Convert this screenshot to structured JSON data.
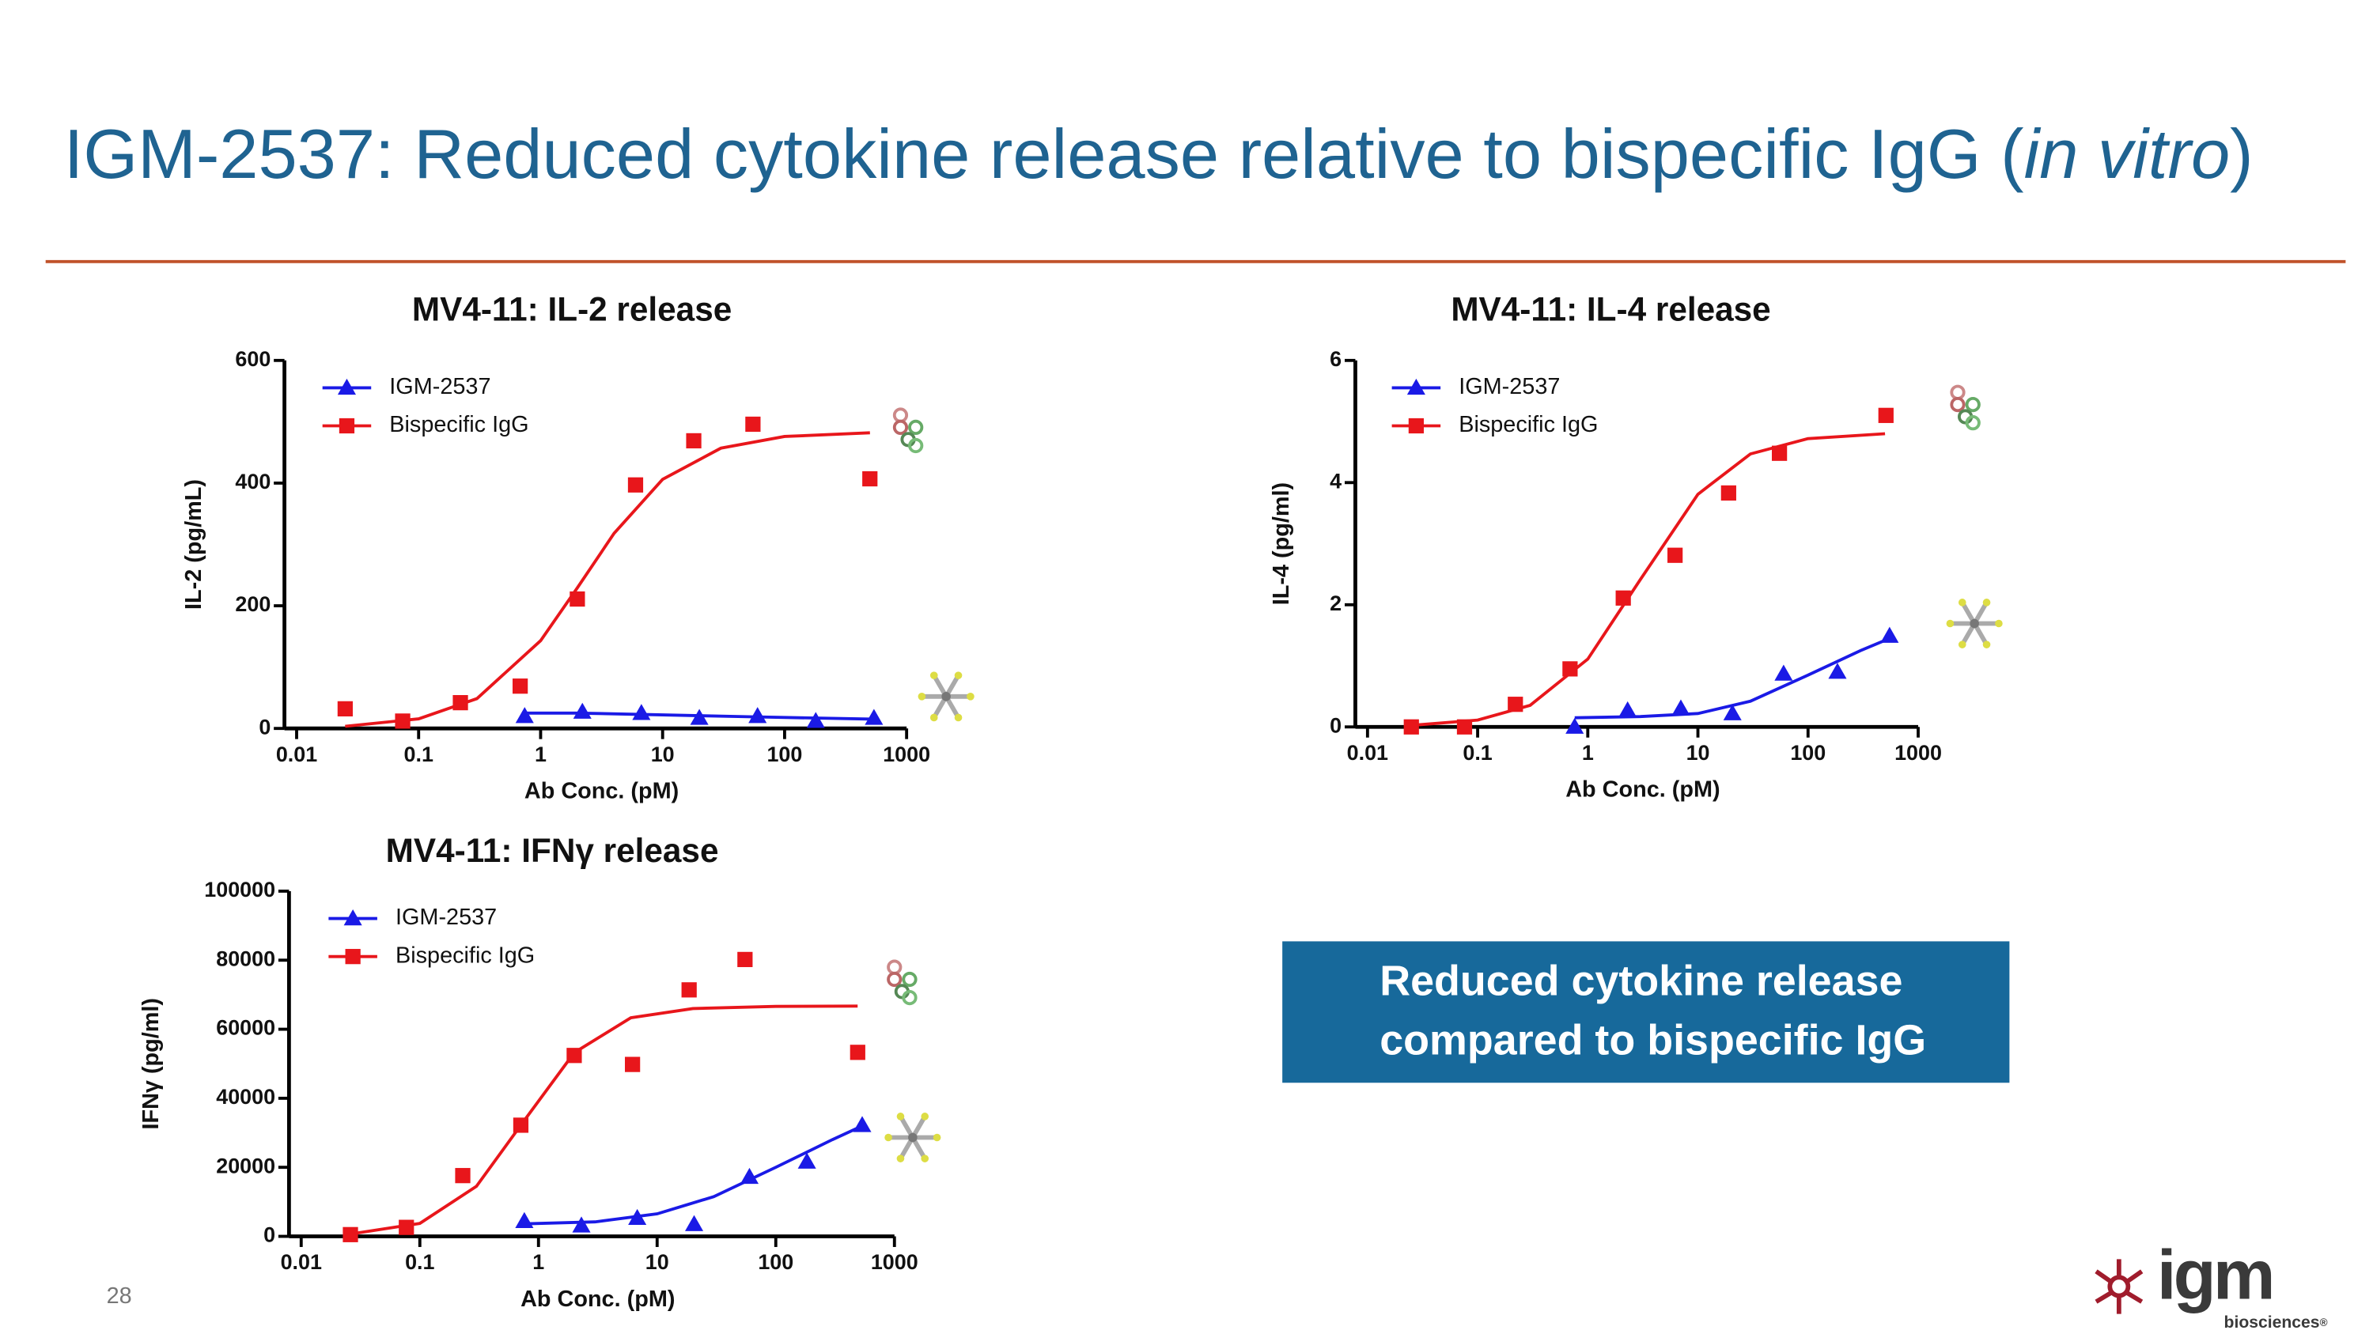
{
  "header": {
    "title": "IGM-2537: Reduced cytokine release relative to bispecific IgG (",
    "title_italic": "in vitro",
    "title_end": ")"
  },
  "chart_data": [
    {
      "type": "scatter",
      "title": "MV4-11: IL-2 release",
      "x_label": "Ab Conc. (pM)",
      "y_label": "IL-2 (pg/mL)",
      "log_x": true,
      "xlim": [
        0.01,
        1000
      ],
      "xticks": [
        0.01,
        0.1,
        1,
        10,
        100,
        1000
      ],
      "ylim": [
        0,
        600
      ],
      "yticks": [
        0,
        200,
        400,
        600
      ],
      "legend": "upper left",
      "series": [
        {
          "name": "IGM-2537",
          "color": "#1a1ae6",
          "marker": "triangle",
          "x": [
            0.74,
            2.2,
            6.7,
            20,
            60,
            180,
            540
          ],
          "values": [
            20,
            27,
            25,
            17,
            20,
            12,
            17
          ],
          "fit_x": [
            0.74,
            2,
            10,
            50,
            540
          ],
          "fit_values": [
            25,
            25,
            22,
            19,
            15
          ]
        },
        {
          "name": "Bispecific IgG",
          "color": "#e8161b",
          "marker": "square",
          "x": [
            0.025,
            0.074,
            0.22,
            0.68,
            2,
            6,
            18,
            55,
            500
          ],
          "values": [
            32,
            12,
            42,
            69,
            211,
            397,
            469,
            496,
            407
          ],
          "fit_x": [
            0.025,
            0.1,
            0.3,
            1,
            2,
            4,
            10,
            30,
            100,
            500
          ],
          "fit_values": [
            3.5,
            15.5,
            48.5,
            143,
            229,
            318,
            406,
            457,
            476,
            482
          ]
        }
      ]
    },
    {
      "type": "scatter",
      "title": "MV4-11: IL-4 release",
      "x_label": "Ab Conc. (pM)",
      "y_label": "IL-4 (pg/ml)",
      "log_x": true,
      "xlim": [
        0.01,
        1000
      ],
      "xticks": [
        0.01,
        0.1,
        1,
        10,
        100,
        1000
      ],
      "ylim": [
        0,
        6
      ],
      "yticks": [
        0,
        2,
        4,
        6
      ],
      "legend": "upper left",
      "series": [
        {
          "name": "IGM-2537",
          "color": "#1a1ae6",
          "marker": "triangle",
          "x": [
            0.76,
            2.3,
            7,
            20.6,
            60,
            185,
            550
          ],
          "values": [
            0,
            0.27,
            0.3,
            0.22,
            0.87,
            0.9,
            1.49
          ],
          "fit_x": [
            0.76,
            3,
            10,
            30,
            100,
            300,
            550
          ],
          "fit_values": [
            0.15,
            0.17,
            0.22,
            0.42,
            0.85,
            1.25,
            1.45
          ]
        },
        {
          "name": "Bispecific IgG",
          "color": "#e8161b",
          "marker": "square",
          "x": [
            0.025,
            0.076,
            0.22,
            0.69,
            2.1,
            6.2,
            19,
            55,
            510
          ],
          "values": [
            0,
            0,
            0.37,
            0.95,
            2.11,
            2.81,
            3.83,
            4.48,
            5.1
          ],
          "fit_x": [
            0.025,
            0.1,
            0.3,
            1,
            3,
            10,
            30,
            100,
            500
          ],
          "fit_values": [
            0.025,
            0.112,
            0.354,
            1.11,
            2.41,
            3.81,
            4.47,
            4.72,
            4.8
          ]
        }
      ]
    },
    {
      "type": "scatter",
      "title": "MV4-11: IFNγ release",
      "x_label": "Ab Conc. (pM)",
      "y_label": "IFNγ (pg/ml)",
      "log_x": true,
      "xlim": [
        0.01,
        1000
      ],
      "xticks": [
        0.01,
        0.1,
        1,
        10,
        100,
        1000
      ],
      "ylim": [
        0,
        100000
      ],
      "yticks": [
        0,
        20000,
        40000,
        60000,
        80000,
        100000
      ],
      "legend": "upper left",
      "series": [
        {
          "name": "IGM-2537",
          "color": "#1a1ae6",
          "marker": "triangle",
          "x": [
            0.76,
            2.3,
            6.8,
            20.5,
            60,
            183,
            535
          ],
          "values": [
            4400,
            3100,
            5300,
            3500,
            17200,
            21600,
            32200
          ],
          "fit_x": [
            0.76,
            3,
            10,
            30,
            100,
            300,
            535
          ],
          "fit_values": [
            3600,
            4200,
            6500,
            11500,
            20000,
            28000,
            32000
          ]
        },
        {
          "name": "Bispecific IgG",
          "color": "#e8161b",
          "marker": "square",
          "x": [
            0.026,
            0.077,
            0.23,
            0.71,
            2,
            6.2,
            18.6,
            55,
            490
          ],
          "values": [
            500,
            2600,
            17600,
            32200,
            52400,
            49800,
            71400,
            80200,
            53300
          ],
          "fit_x": [
            0.025,
            0.1,
            0.3,
            0.75,
            2,
            6,
            20,
            100,
            490
          ],
          "fit_values": [
            565,
            3750,
            14500,
            33350,
            53200,
            63300,
            66000,
            66600,
            66700
          ]
        }
      ]
    }
  ],
  "callout": {
    "lines": [
      "Reduced cytokine release",
      "compared to bispecific IgG"
    ]
  },
  "footer": {
    "page_number": "28",
    "logo": "igm",
    "logo_subtitle": "biosciences",
    "registered": "®"
  }
}
